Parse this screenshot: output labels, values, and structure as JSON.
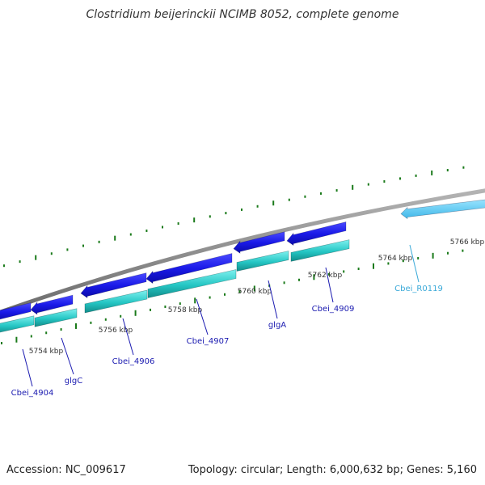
{
  "title": "Clostridium beijerinckii NCIMB 8052, complete genome",
  "footer": {
    "accession": "Accession: NC_009617",
    "summary": "Topology: circular; Length: 6,000,632 bp; Genes: 5,160"
  },
  "colors": {
    "backbone": "#8a8a8a",
    "cds": "#1515e6",
    "cds_gene": "#2bcfcf",
    "rna": "#4cc8f2",
    "tick": "#1a7a1a",
    "label_cds": "#1a1ab0",
    "label_rna": "#3aa9d8"
  },
  "ruler": [
    {
      "label": "5754 kbp"
    },
    {
      "label": "5756 kbp"
    },
    {
      "label": "5758 kbp"
    },
    {
      "label": "5760 kbp"
    },
    {
      "label": "5762 kbp"
    },
    {
      "label": "5764 kbp"
    },
    {
      "label": "5766 kbp"
    }
  ],
  "genes": [
    {
      "name": "Cbei_4904",
      "type": "CDS"
    },
    {
      "name": "glgC",
      "type": "CDS"
    },
    {
      "name": "Cbei_4906",
      "type": "CDS"
    },
    {
      "name": "Cbei_4907",
      "type": "CDS"
    },
    {
      "name": "glgA",
      "type": "CDS"
    },
    {
      "name": "Cbei_4909",
      "type": "CDS"
    },
    {
      "name": "Cbei_R0119",
      "type": "RNA"
    }
  ]
}
